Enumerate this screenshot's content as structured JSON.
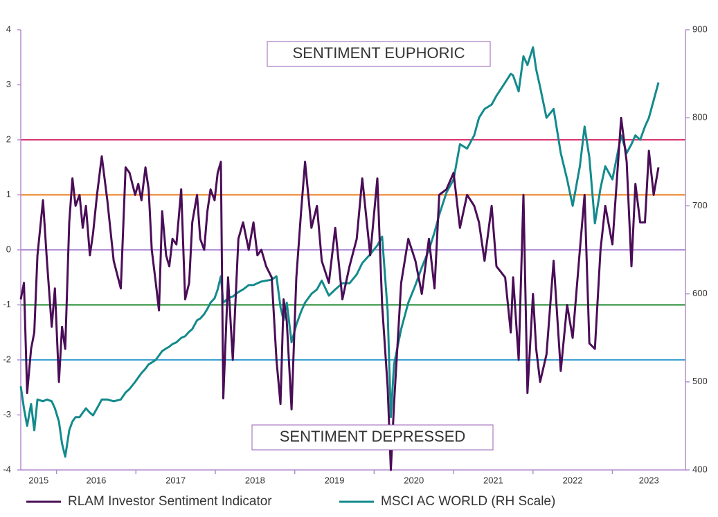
{
  "chart_data": {
    "type": "line",
    "annotations": [
      "SENTIMENT EUPHORIC",
      "SENTIMENT DEPRESSED"
    ],
    "x": [
      2015.55,
      2015.59,
      2015.63,
      2015.68,
      2015.72,
      2015.76,
      2015.83,
      2015.88,
      2015.94,
      2015.98,
      2016.03,
      2016.07,
      2016.11,
      2016.16,
      2016.2,
      2016.24,
      2016.29,
      2016.33,
      2016.37,
      2016.42,
      2016.46,
      2016.51,
      2016.57,
      2016.64,
      2016.72,
      2016.81,
      2016.87,
      2016.92,
      2016.99,
      2017.03,
      2017.07,
      2017.12,
      2017.16,
      2017.2,
      2017.25,
      2017.29,
      2017.33,
      2017.38,
      2017.42,
      2017.46,
      2017.51,
      2017.57,
      2017.62,
      2017.67,
      2017.71,
      2017.77,
      2017.81,
      2017.86,
      2017.9,
      2017.94,
      2017.99,
      2018.03,
      2018.07,
      2018.1,
      2018.16,
      2018.22,
      2018.29,
      2018.35,
      2018.42,
      2018.48,
      2018.53,
      2018.58,
      2018.64,
      2018.71,
      2018.77,
      2018.82,
      2018.86,
      2018.9,
      2018.96,
      2019.02,
      2019.08,
      2019.13,
      2019.21,
      2019.28,
      2019.34,
      2019.43,
      2019.51,
      2019.6,
      2019.69,
      2019.78,
      2019.85,
      2019.95,
      2020.04,
      2020.1,
      2020.17,
      2020.21,
      2020.25,
      2020.34,
      2020.43,
      2020.52,
      2020.6,
      2020.69,
      2020.76,
      2020.82,
      2020.91,
      2021.0,
      2021.08,
      2021.17,
      2021.26,
      2021.32,
      2021.39,
      2021.48,
      2021.54,
      2021.65,
      2021.72,
      2021.75,
      2021.82,
      2021.88,
      2021.93,
      2022.0,
      2022.04,
      2022.09,
      2022.17,
      2022.26,
      2022.35,
      2022.43,
      2022.5,
      2022.59,
      2022.65,
      2022.71,
      2022.78,
      2022.85,
      2022.91,
      2023.0,
      2023.11,
      2023.18,
      2023.24,
      2023.29,
      2023.35,
      2023.41,
      2023.46,
      2023.52,
      2023.58
    ],
    "series": [
      {
        "name": "RLAM Investor Sentiment Indicator",
        "color": "#4a0d57",
        "axis": "y",
        "values": [
          -0.9,
          -0.6,
          -2.6,
          -1.8,
          -1.5,
          -0.1,
          0.9,
          -0.2,
          -1.4,
          -0.7,
          -2.4,
          -1.4,
          -1.8,
          0.5,
          1.3,
          0.8,
          1.0,
          0.4,
          0.8,
          -0.1,
          0.3,
          1.0,
          1.7,
          0.9,
          -0.2,
          -0.7,
          1.5,
          1.4,
          1.0,
          1.2,
          0.9,
          1.5,
          1.1,
          0.0,
          -0.6,
          -1.1,
          0.7,
          -0.1,
          -0.3,
          0.2,
          0.1,
          1.1,
          -0.9,
          -0.6,
          0.5,
          1.0,
          0.2,
          0.0,
          0.7,
          1.1,
          0.9,
          1.4,
          1.6,
          -2.7,
          -0.5,
          -2.0,
          0.2,
          0.5,
          0.0,
          0.5,
          -0.1,
          0.0,
          -0.3,
          -0.5,
          -2.0,
          -2.8,
          -0.9,
          -1.3,
          -2.9,
          -0.5,
          0.7,
          1.6,
          0.4,
          0.8,
          -0.2,
          -0.6,
          0.4,
          -0.9,
          -0.3,
          0.2,
          1.3,
          -0.1,
          1.3,
          -1.0,
          -2.5,
          -4.0,
          -2.8,
          -0.6,
          0.2,
          -0.2,
          -0.8,
          0.2,
          -0.7,
          1.0,
          1.1,
          1.4,
          0.4,
          1.0,
          0.8,
          0.5,
          -0.2,
          0.8,
          -0.3,
          -0.5,
          -1.5,
          -0.5,
          -2.0,
          1.0,
          -2.6,
          -0.8,
          -1.8,
          -2.4,
          -1.9,
          -0.2,
          -2.2,
          -1.0,
          -1.6,
          0.0,
          1.0,
          -1.7,
          -1.8,
          0.0,
          0.8,
          0.1,
          2.4,
          1.6,
          -0.3,
          1.2,
          0.5,
          0.5,
          1.8,
          1.0,
          1.5
        ]
      },
      {
        "name": "MSCI AC WORLD (RH Scale)",
        "color": "#138a8c",
        "axis": "y2",
        "values": [
          495,
          470,
          450,
          475,
          445,
          480,
          478,
          480,
          478,
          470,
          455,
          430,
          415,
          445,
          455,
          460,
          460,
          465,
          470,
          465,
          462,
          470,
          480,
          480,
          478,
          480,
          488,
          492,
          500,
          505,
          510,
          515,
          520,
          522,
          525,
          530,
          535,
          538,
          540,
          543,
          545,
          550,
          552,
          557,
          560,
          570,
          572,
          577,
          583,
          590,
          595,
          605,
          620,
          590,
          595,
          597,
          602,
          605,
          610,
          610,
          612,
          614,
          615,
          616,
          620,
          585,
          570,
          590,
          545,
          565,
          580,
          590,
          600,
          605,
          615,
          598,
          605,
          612,
          612,
          622,
          635,
          645,
          655,
          665,
          580,
          460,
          520,
          560,
          590,
          610,
          630,
          650,
          670,
          690,
          715,
          730,
          770,
          765,
          780,
          800,
          810,
          815,
          825,
          840,
          850,
          848,
          830,
          870,
          860,
          880,
          855,
          835,
          800,
          810,
          760,
          730,
          700,
          745,
          790,
          755,
          680,
          720,
          745,
          730,
          780,
          760,
          770,
          780,
          775,
          790,
          800,
          820,
          840
        ]
      }
    ],
    "reference_lines": [
      {
        "value": 2,
        "color": "#d9336e"
      },
      {
        "value": 1,
        "color": "#ee7d1f"
      },
      {
        "value": 0,
        "color": "#b38fd6"
      },
      {
        "value": -1,
        "color": "#1f8a2e"
      },
      {
        "value": -2,
        "color": "#3aa0d0"
      }
    ],
    "xlim": [
      2015.55,
      2023.92
    ],
    "xticks": [
      2015,
      2016,
      2017,
      2018,
      2019,
      2020,
      2021,
      2022,
      2023
    ],
    "ylim": [
      -4,
      4
    ],
    "yticks": [
      -4,
      -3,
      -2,
      -1,
      0,
      1,
      2,
      3,
      4
    ],
    "y2lim": [
      400,
      900
    ],
    "y2ticks": [
      400,
      500,
      600,
      700,
      800,
      900
    ],
    "axis_color": "#b48cd0"
  }
}
